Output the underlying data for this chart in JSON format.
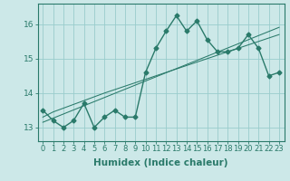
{
  "xlabel": "Humidex (Indice chaleur)",
  "background_color": "#cce8e8",
  "grid_color": "#99cccc",
  "line_color": "#2a7a6a",
  "x_data": [
    0,
    1,
    2,
    3,
    4,
    5,
    6,
    7,
    8,
    9,
    10,
    11,
    12,
    13,
    14,
    15,
    16,
    17,
    18,
    19,
    20,
    21,
    22,
    23
  ],
  "y_main": [
    13.5,
    13.2,
    13.0,
    13.2,
    13.7,
    13.0,
    13.3,
    13.5,
    13.3,
    13.3,
    14.6,
    15.3,
    15.8,
    16.25,
    15.8,
    16.1,
    15.55,
    15.2,
    15.2,
    15.3,
    15.7,
    15.3,
    14.5,
    14.6
  ],
  "y_trend1": [
    13.3,
    13.45,
    13.56,
    13.67,
    13.78,
    13.89,
    14.0,
    14.1,
    14.2,
    14.3,
    14.4,
    14.5,
    14.6,
    14.7,
    14.8,
    14.9,
    15.0,
    15.1,
    15.2,
    15.3,
    15.4,
    15.5,
    15.6,
    15.7
  ],
  "y_trend2": [
    13.15,
    13.27,
    13.39,
    13.51,
    13.63,
    13.75,
    13.87,
    13.99,
    14.11,
    14.23,
    14.35,
    14.47,
    14.59,
    14.71,
    14.83,
    14.95,
    15.07,
    15.19,
    15.31,
    15.43,
    15.55,
    15.67,
    15.79,
    15.91
  ],
  "ylim": [
    12.6,
    16.6
  ],
  "yticks": [
    13,
    14,
    15,
    16
  ],
  "xticks": [
    0,
    1,
    2,
    3,
    4,
    5,
    6,
    7,
    8,
    9,
    10,
    11,
    12,
    13,
    14,
    15,
    16,
    17,
    18,
    19,
    20,
    21,
    22,
    23
  ],
  "marker": "D",
  "markersize": 2.5,
  "linewidth": 1.0,
  "tick_fontsize": 6,
  "label_fontsize": 7.5
}
